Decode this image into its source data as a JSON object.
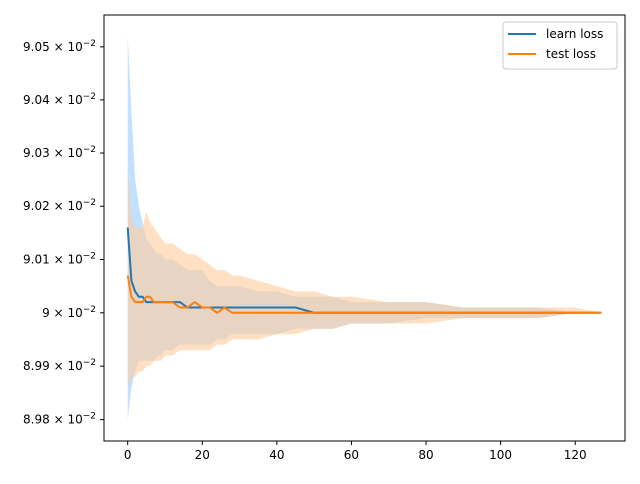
{
  "chart_data": {
    "type": "line",
    "title": "",
    "xlabel": "",
    "ylabel": "",
    "xlim": [
      -6.35,
      133.35
    ],
    "ylim": [
      0.08976,
      0.09056
    ],
    "yscale": "log",
    "grid": false,
    "legend_position": "top-right",
    "x_ticks": [
      0,
      20,
      40,
      60,
      80,
      100,
      120
    ],
    "x_tick_labels": [
      "0",
      "20",
      "40",
      "60",
      "80",
      "100",
      "120"
    ],
    "y_ticks": [
      0.0898,
      0.0899,
      0.09,
      0.0901,
      0.0902,
      0.0903,
      0.0904,
      0.0905
    ],
    "y_tick_labels": [
      {
        "mantissa": "8.98",
        "base": "10",
        "exp": "−2"
      },
      {
        "mantissa": "8.99",
        "base": "10",
        "exp": "−2"
      },
      {
        "mantissa": "9",
        "base": "10",
        "exp": "−2"
      },
      {
        "mantissa": "9.01",
        "base": "10",
        "exp": "−2"
      },
      {
        "mantissa": "9.02",
        "base": "10",
        "exp": "−2"
      },
      {
        "mantissa": "9.03",
        "base": "10",
        "exp": "−2"
      },
      {
        "mantissa": "9.04",
        "base": "10",
        "exp": "−2"
      },
      {
        "mantissa": "9.05",
        "base": "10",
        "exp": "−2"
      }
    ],
    "series": [
      {
        "name": "learn loss",
        "color": "#1f77b4",
        "band_color": "#99ccff",
        "x": [
          0,
          1,
          2,
          3,
          4,
          5,
          6,
          7,
          8,
          9,
          10,
          12,
          14,
          16,
          18,
          20,
          22,
          24,
          26,
          28,
          30,
          35,
          40,
          45,
          50,
          55,
          60,
          70,
          80,
          90,
          100,
          110,
          120,
          127
        ],
        "y": [
          0.09016,
          0.09006,
          0.09004,
          0.09003,
          0.09003,
          0.09002,
          0.09002,
          0.09002,
          0.09002,
          0.09002,
          0.09002,
          0.09002,
          0.09002,
          0.09001,
          0.09001,
          0.09001,
          0.09001,
          0.09001,
          0.09001,
          0.09001,
          0.09001,
          0.09001,
          0.09001,
          0.09001,
          0.09,
          0.09,
          0.09,
          0.09,
          0.09,
          0.09,
          0.09,
          0.09,
          0.09,
          0.09
        ],
        "upper": [
          0.09052,
          0.09038,
          0.09025,
          0.0902,
          0.09017,
          0.09014,
          0.09013,
          0.09012,
          0.09011,
          0.09011,
          0.0901,
          0.0901,
          0.09009,
          0.09008,
          0.09008,
          0.09008,
          0.09006,
          0.09005,
          0.09005,
          0.09005,
          0.09005,
          0.09004,
          0.09004,
          0.09003,
          0.09003,
          0.09003,
          0.09002,
          0.09002,
          0.09002,
          0.09001,
          0.09001,
          0.09001,
          0.09,
          0.09
        ],
        "lower": [
          0.0898,
          0.08986,
          0.08989,
          0.08991,
          0.08991,
          0.08991,
          0.08991,
          0.08991,
          0.08992,
          0.08992,
          0.08993,
          0.08993,
          0.08994,
          0.08994,
          0.08994,
          0.08994,
          0.08994,
          0.08995,
          0.08995,
          0.08996,
          0.08996,
          0.08996,
          0.08996,
          0.08997,
          0.08997,
          0.08997,
          0.08998,
          0.08998,
          0.08999,
          0.08999,
          0.08999,
          0.08999,
          0.09,
          0.09
        ]
      },
      {
        "name": "test loss",
        "color": "#ff7f0e",
        "band_color": "#ffcc99",
        "x": [
          0,
          1,
          2,
          3,
          4,
          5,
          6,
          7,
          8,
          9,
          10,
          12,
          14,
          16,
          18,
          20,
          22,
          24,
          26,
          28,
          30,
          35,
          40,
          45,
          50,
          55,
          60,
          70,
          80,
          90,
          100,
          110,
          120,
          127
        ],
        "y": [
          0.09007,
          0.09003,
          0.09002,
          0.09002,
          0.09002,
          0.09003,
          0.09003,
          0.09002,
          0.09002,
          0.09002,
          0.09002,
          0.09002,
          0.09001,
          0.09001,
          0.09002,
          0.09001,
          0.09001,
          0.09,
          0.09001,
          0.09,
          0.09,
          0.09,
          0.09,
          0.09,
          0.09,
          0.09,
          0.09,
          0.09,
          0.09,
          0.09,
          0.09,
          0.09,
          0.09,
          0.09
        ],
        "upper": [
          0.09027,
          0.09018,
          0.09016,
          0.09016,
          0.09016,
          0.09019,
          0.09017,
          0.09016,
          0.09015,
          0.09014,
          0.09013,
          0.09013,
          0.09012,
          0.09011,
          0.09011,
          0.0901,
          0.09009,
          0.09008,
          0.09008,
          0.09007,
          0.09007,
          0.09006,
          0.09005,
          0.09004,
          0.09004,
          0.09003,
          0.09003,
          0.09002,
          0.09002,
          0.09001,
          0.09001,
          0.09001,
          0.09001,
          0.09
        ],
        "lower": [
          0.08986,
          0.08988,
          0.08988,
          0.08989,
          0.08989,
          0.0899,
          0.0899,
          0.08991,
          0.08991,
          0.08991,
          0.08992,
          0.08992,
          0.08993,
          0.08993,
          0.08993,
          0.08993,
          0.08993,
          0.08994,
          0.08994,
          0.08995,
          0.08995,
          0.08995,
          0.08996,
          0.08996,
          0.08997,
          0.08997,
          0.08998,
          0.08998,
          0.08998,
          0.08999,
          0.08999,
          0.08999,
          0.09,
          0.09
        ]
      }
    ]
  }
}
